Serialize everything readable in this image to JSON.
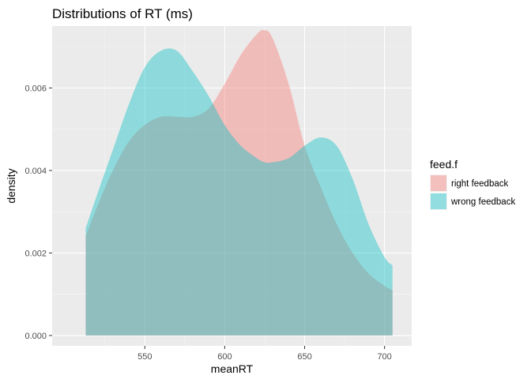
{
  "chart_data": {
    "type": "area",
    "title": "Distributions of RT (ms)",
    "xlabel": "meanRT",
    "ylabel": "density",
    "xlim": [
      492,
      717
    ],
    "ylim": [
      -0.00025,
      0.0075
    ],
    "x_ticks": [
      550,
      600,
      650,
      700
    ],
    "y_ticks": [
      0.0,
      0.002,
      0.004,
      0.006
    ],
    "x_tick_labels": [
      "550",
      "600",
      "650",
      "700"
    ],
    "y_tick_labels": [
      "0.000",
      "0.002",
      "0.004",
      "0.006"
    ],
    "grid": true,
    "legend": {
      "title": "feed.f",
      "placement": "right"
    },
    "x": [
      513,
      520,
      530,
      540,
      550,
      560,
      570,
      580,
      590,
      600,
      610,
      620,
      625,
      630,
      640,
      650,
      660,
      670,
      680,
      690,
      700,
      705
    ],
    "series": [
      {
        "name": "right feedback",
        "color": "#F8766D",
        "values": [
          0.0024,
          0.0031,
          0.004,
          0.0047,
          0.0051,
          0.0053,
          0.0053,
          0.0053,
          0.0055,
          0.0061,
          0.0068,
          0.0073,
          0.0074,
          0.0072,
          0.0061,
          0.0046,
          0.0036,
          0.0027,
          0.002,
          0.0015,
          0.0012,
          0.0011
        ]
      },
      {
        "name": "wrong feedback",
        "color": "#00BFC4",
        "values": [
          0.0026,
          0.0034,
          0.0045,
          0.0056,
          0.0065,
          0.0069,
          0.0069,
          0.0064,
          0.0058,
          0.0051,
          0.0046,
          0.0043,
          0.0042,
          0.0042,
          0.0043,
          0.0046,
          0.0048,
          0.0046,
          0.0038,
          0.0027,
          0.0019,
          0.0017
        ]
      }
    ]
  }
}
